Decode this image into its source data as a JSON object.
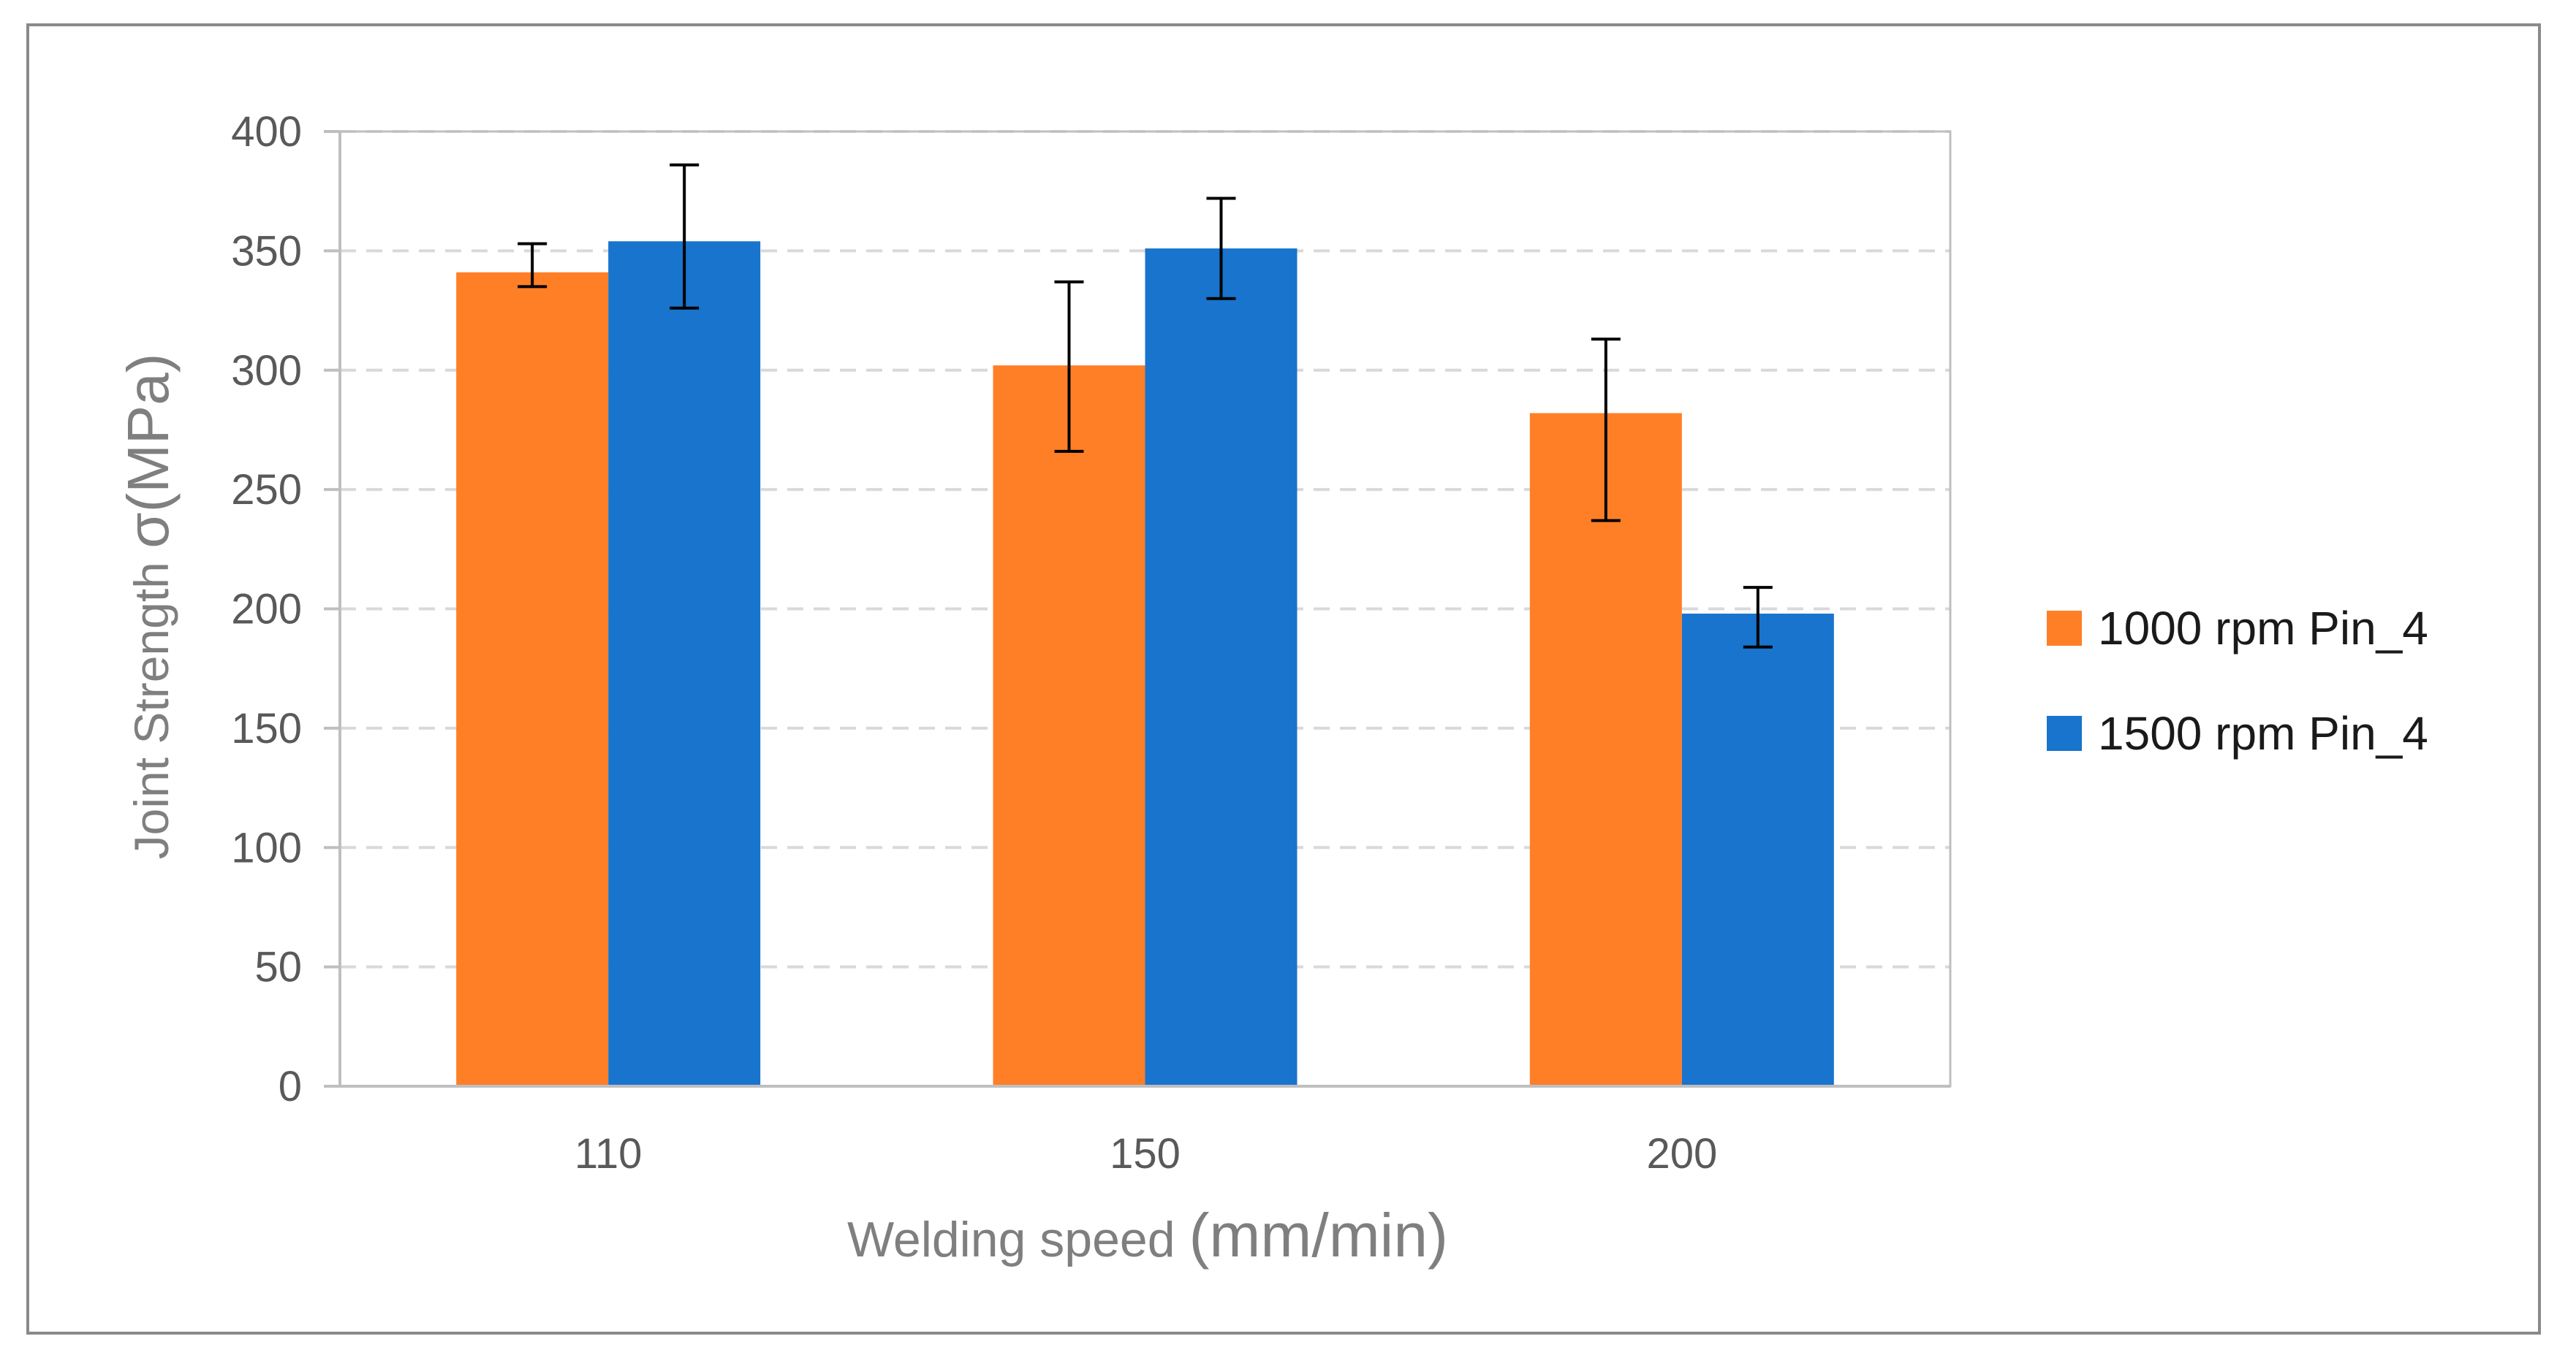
{
  "chart_data": {
    "type": "bar",
    "categories": [
      "110",
      "150",
      "200"
    ],
    "series": [
      {
        "name": "1000 rpm Pin_4",
        "color": "#FF7F27",
        "values": [
          341,
          302,
          282
        ],
        "error_low": [
          335,
          266,
          237
        ],
        "error_high": [
          353,
          337,
          313
        ]
      },
      {
        "name": "1500 rpm Pin_4",
        "color": "#1874CD",
        "values": [
          354,
          351,
          198
        ],
        "error_low": [
          326,
          330,
          184
        ],
        "error_high": [
          386,
          372,
          209
        ]
      }
    ],
    "xlabel_main": "Welding speed ",
    "xlabel_unit": "(mm/min)",
    "ylabel_main": "Joint Strength ",
    "ylabel_unit": "σ(MPa)",
    "ylim": [
      0,
      400
    ],
    "yticks": [
      "0",
      "50",
      "100",
      "150",
      "200",
      "250",
      "300",
      "350",
      "400"
    ],
    "grid": "horizontal dashed",
    "legend_position": "right",
    "colors": {
      "grid": "#d9d9d9",
      "axis": "#bfbfbf",
      "error_bar": "#000000",
      "frame": "#8a8a8a"
    }
  }
}
